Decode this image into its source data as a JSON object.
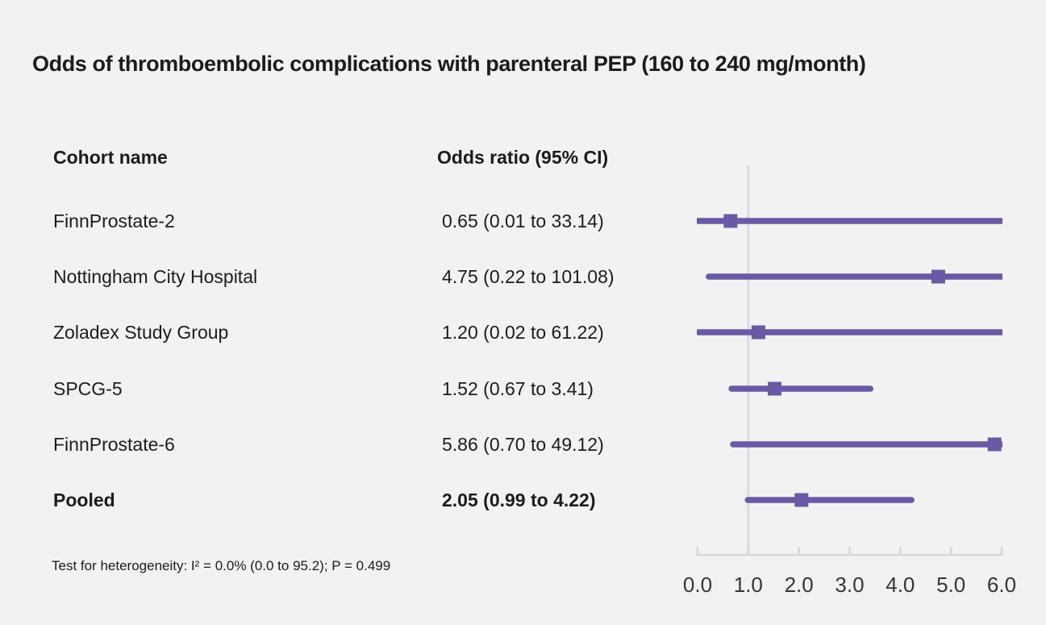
{
  "title": "Odds of thromboembolic complications with parenteral PEP (160 to 240 mg/month)",
  "table": {
    "col1_header": "Cohort name",
    "col2_header": "Odds ratio (95% CI)",
    "rows": [
      {
        "name": "FinnProstate-2",
        "or_text": "0.65 (0.01 to 33.14)",
        "bold": false
      },
      {
        "name": "Nottingham City Hospital",
        "or_text": "4.75 (0.22 to 101.08)",
        "bold": false
      },
      {
        "name": "Zoladex Study Group",
        "or_text": "1.20 (0.02 to 61.22)",
        "bold": false
      },
      {
        "name": "SPCG-5",
        "or_text": "1.52 (0.67 to 3.41)",
        "bold": false
      },
      {
        "name": "FinnProstate-6",
        "or_text": "5.86 (0.70 to 49.12)",
        "bold": false
      },
      {
        "name": "Pooled",
        "or_text": "2.05 (0.99 to 4.22)",
        "bold": true
      }
    ]
  },
  "footnote": "Test for heterogeneity: I² = 0.0% (0.0 to 95.2); P = 0.499",
  "colors": {
    "background": "#f2f2f2",
    "marker": "#6a59a4",
    "ci_line": "#6a59a4",
    "reference_line": "#d8dce3",
    "axis": "#d3d7de",
    "tick_text": "#33363a",
    "text": "#1c1c1c"
  },
  "chart_data": {
    "type": "forest",
    "title": "Odds of thromboembolic complications with parenteral PEP (160 to 240 mg/month)",
    "columns": [
      "Cohort name",
      "Odds ratio (95% CI)"
    ],
    "xlabel": "",
    "xlim": [
      0,
      6
    ],
    "x_tick_values": [
      0,
      1,
      2,
      3,
      4,
      5,
      6
    ],
    "x_tick_labels": [
      "0.0",
      "1.0",
      "2.0",
      "3.0",
      "4.0",
      "5.0",
      "6.0"
    ],
    "reference_line": 1.0,
    "grid": false,
    "legend": "none",
    "studies": [
      {
        "label": "FinnProstate-2",
        "estimate": 0.65,
        "ci_lower": 0.01,
        "ci_upper": 33.14,
        "pooled": false
      },
      {
        "label": "Nottingham City Hospital",
        "estimate": 4.75,
        "ci_lower": 0.22,
        "ci_upper": 101.08,
        "pooled": false
      },
      {
        "label": "Zoladex Study Group",
        "estimate": 1.2,
        "ci_lower": 0.02,
        "ci_upper": 61.22,
        "pooled": false
      },
      {
        "label": "SPCG-5",
        "estimate": 1.52,
        "ci_lower": 0.67,
        "ci_upper": 3.41,
        "pooled": false
      },
      {
        "label": "FinnProstate-6",
        "estimate": 5.86,
        "ci_lower": 0.7,
        "ci_upper": 49.12,
        "pooled": false
      },
      {
        "label": "Pooled",
        "estimate": 2.05,
        "ci_lower": 0.99,
        "ci_upper": 4.22,
        "pooled": true
      }
    ],
    "heterogeneity_note": "Test for heterogeneity: I² = 0.0% (0.0 to 95.2); P = 0.499"
  }
}
